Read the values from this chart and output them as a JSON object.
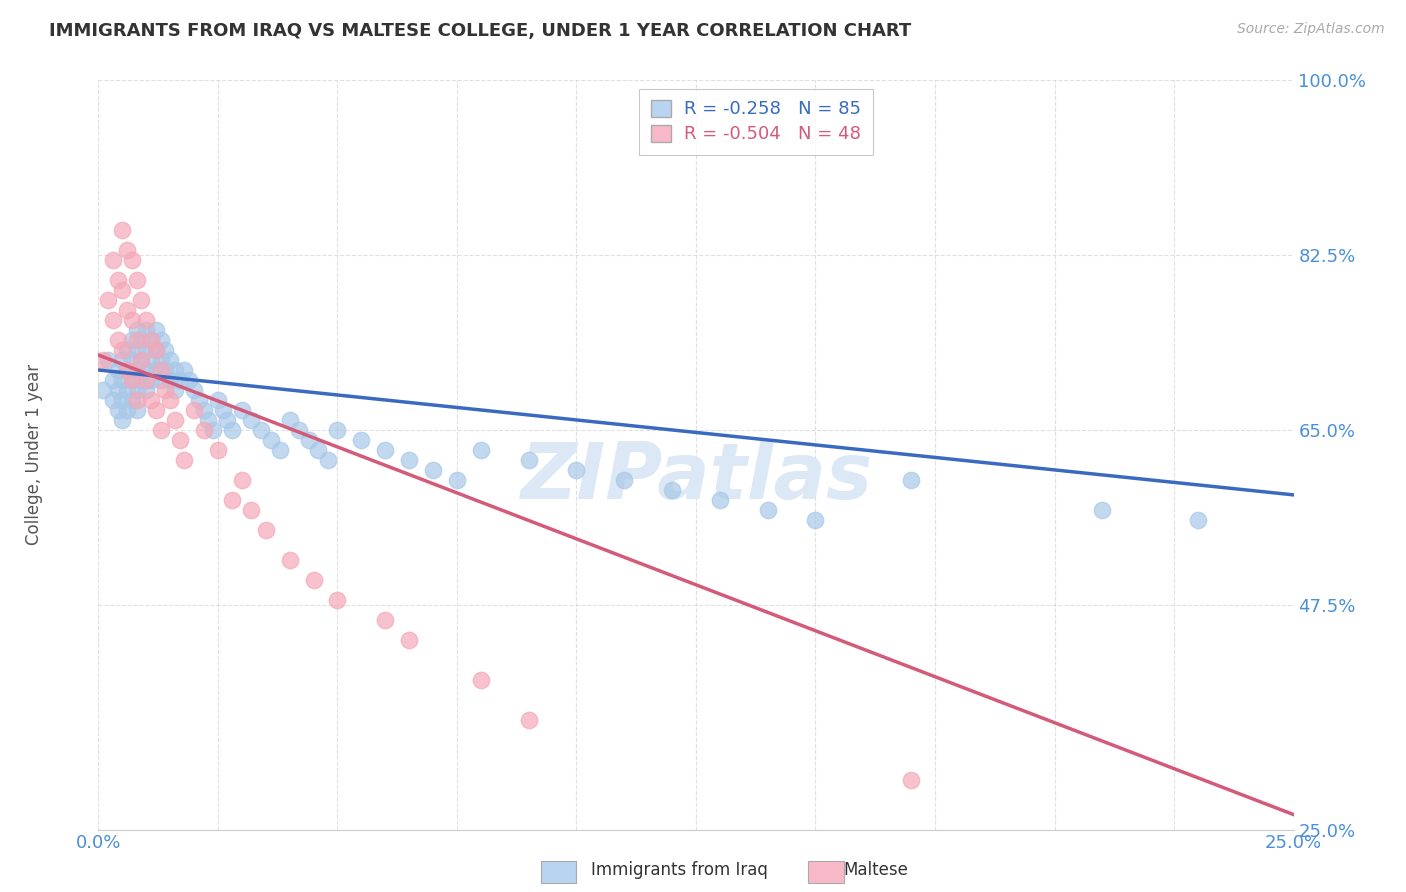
{
  "title": "IMMIGRANTS FROM IRAQ VS MALTESE COLLEGE, UNDER 1 YEAR CORRELATION CHART",
  "source": "Source: ZipAtlas.com",
  "ylabel": "College, Under 1 year",
  "xlim": [
    0.0,
    0.25
  ],
  "ylim": [
    0.25,
    1.0
  ],
  "xticks": [
    0.0,
    0.025,
    0.05,
    0.075,
    0.1,
    0.125,
    0.15,
    0.175,
    0.2,
    0.225,
    0.25
  ],
  "xtick_labels": [
    "0.0%",
    "",
    "",
    "",
    "",
    "",
    "",
    "",
    "",
    "",
    "25.0%"
  ],
  "ytick_labels": [
    "100.0%",
    "82.5%",
    "65.0%",
    "47.5%",
    "25.0%"
  ],
  "yticks": [
    1.0,
    0.825,
    0.65,
    0.475,
    0.25
  ],
  "legend_entries": [
    {
      "label": "R = -0.258   N = 85",
      "facecolor": "#b8d4f0"
    },
    {
      "label": "R = -0.504   N = 48",
      "facecolor": "#f9b8c8"
    }
  ],
  "iraq_scatter_x": [
    0.001,
    0.002,
    0.003,
    0.003,
    0.004,
    0.004,
    0.004,
    0.005,
    0.005,
    0.005,
    0.005,
    0.006,
    0.006,
    0.006,
    0.006,
    0.007,
    0.007,
    0.007,
    0.007,
    0.008,
    0.008,
    0.008,
    0.008,
    0.008,
    0.009,
    0.009,
    0.009,
    0.01,
    0.01,
    0.01,
    0.01,
    0.011,
    0.011,
    0.011,
    0.012,
    0.012,
    0.012,
    0.013,
    0.013,
    0.013,
    0.014,
    0.014,
    0.015,
    0.015,
    0.016,
    0.016,
    0.017,
    0.018,
    0.019,
    0.02,
    0.021,
    0.022,
    0.023,
    0.024,
    0.025,
    0.026,
    0.027,
    0.028,
    0.03,
    0.032,
    0.034,
    0.036,
    0.038,
    0.04,
    0.042,
    0.044,
    0.046,
    0.048,
    0.05,
    0.055,
    0.06,
    0.065,
    0.07,
    0.075,
    0.08,
    0.09,
    0.1,
    0.11,
    0.12,
    0.13,
    0.14,
    0.15,
    0.17,
    0.21,
    0.23
  ],
  "iraq_scatter_y": [
    0.69,
    0.72,
    0.7,
    0.68,
    0.71,
    0.69,
    0.67,
    0.72,
    0.7,
    0.68,
    0.66,
    0.73,
    0.71,
    0.69,
    0.67,
    0.74,
    0.72,
    0.7,
    0.68,
    0.75,
    0.73,
    0.71,
    0.69,
    0.67,
    0.74,
    0.72,
    0.7,
    0.75,
    0.73,
    0.71,
    0.69,
    0.74,
    0.72,
    0.7,
    0.75,
    0.73,
    0.71,
    0.74,
    0.72,
    0.7,
    0.73,
    0.71,
    0.72,
    0.7,
    0.71,
    0.69,
    0.7,
    0.71,
    0.7,
    0.69,
    0.68,
    0.67,
    0.66,
    0.65,
    0.68,
    0.67,
    0.66,
    0.65,
    0.67,
    0.66,
    0.65,
    0.64,
    0.63,
    0.66,
    0.65,
    0.64,
    0.63,
    0.62,
    0.65,
    0.64,
    0.63,
    0.62,
    0.61,
    0.6,
    0.63,
    0.62,
    0.61,
    0.6,
    0.59,
    0.58,
    0.57,
    0.56,
    0.6,
    0.57,
    0.56
  ],
  "maltese_scatter_x": [
    0.001,
    0.002,
    0.003,
    0.003,
    0.004,
    0.004,
    0.005,
    0.005,
    0.005,
    0.006,
    0.006,
    0.006,
    0.007,
    0.007,
    0.007,
    0.008,
    0.008,
    0.008,
    0.009,
    0.009,
    0.01,
    0.01,
    0.011,
    0.011,
    0.012,
    0.012,
    0.013,
    0.013,
    0.014,
    0.015,
    0.016,
    0.017,
    0.018,
    0.02,
    0.022,
    0.025,
    0.028,
    0.03,
    0.032,
    0.035,
    0.04,
    0.045,
    0.05,
    0.06,
    0.065,
    0.08,
    0.09,
    0.17
  ],
  "maltese_scatter_y": [
    0.72,
    0.78,
    0.82,
    0.76,
    0.8,
    0.74,
    0.85,
    0.79,
    0.73,
    0.83,
    0.77,
    0.71,
    0.82,
    0.76,
    0.7,
    0.8,
    0.74,
    0.68,
    0.78,
    0.72,
    0.76,
    0.7,
    0.74,
    0.68,
    0.73,
    0.67,
    0.71,
    0.65,
    0.69,
    0.68,
    0.66,
    0.64,
    0.62,
    0.67,
    0.65,
    0.63,
    0.58,
    0.6,
    0.57,
    0.55,
    0.52,
    0.5,
    0.48,
    0.46,
    0.44,
    0.4,
    0.36,
    0.3
  ],
  "iraq_line_x": [
    0.0,
    0.25
  ],
  "iraq_line_y": [
    0.71,
    0.585
  ],
  "maltese_line_x": [
    0.0,
    0.25
  ],
  "maltese_line_y": [
    0.725,
    0.265
  ],
  "scatter_color_iraq": "#a8c8e8",
  "scatter_color_maltese": "#f4a8b8",
  "line_color_iraq": "#3a6abf",
  "line_color_maltese": "#d45a7a",
  "bg_color": "#ffffff",
  "grid_color": "#cccccc",
  "title_color": "#333333",
  "axis_label_color": "#4a90d9",
  "ylabel_color": "#555555",
  "source_color": "#aaaaaa",
  "watermark_text": "ZIPatlas",
  "watermark_color": "#dce8f5"
}
